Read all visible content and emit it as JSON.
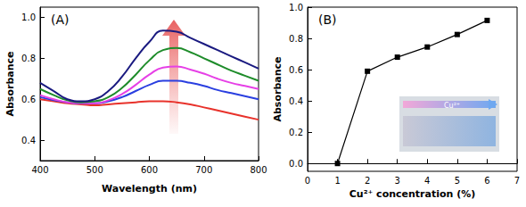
{
  "chart_data": [
    {
      "type": "line",
      "title": "(A)",
      "x_label": "Wavelength (nm)",
      "y_label": "Absorbance",
      "x": [
        400,
        425,
        450,
        475,
        500,
        525,
        550,
        575,
        600,
        625,
        650,
        675,
        700,
        725,
        750,
        775,
        800
      ],
      "series": [
        {
          "color": "#e8322b",
          "values": [
            0.6,
            0.59,
            0.58,
            0.575,
            0.57,
            0.575,
            0.58,
            0.585,
            0.59,
            0.59,
            0.585,
            0.575,
            0.56,
            0.545,
            0.53,
            0.515,
            0.5
          ]
        },
        {
          "color": "#2a3fe0",
          "values": [
            0.61,
            0.595,
            0.585,
            0.58,
            0.58,
            0.59,
            0.61,
            0.64,
            0.67,
            0.69,
            0.69,
            0.68,
            0.665,
            0.645,
            0.63,
            0.615,
            0.6
          ]
        },
        {
          "color": "#e640e6",
          "values": [
            0.62,
            0.6,
            0.585,
            0.58,
            0.58,
            0.595,
            0.625,
            0.67,
            0.72,
            0.755,
            0.76,
            0.745,
            0.725,
            0.7,
            0.68,
            0.665,
            0.65
          ]
        },
        {
          "color": "#1e8c2a",
          "values": [
            0.65,
            0.62,
            0.595,
            0.585,
            0.59,
            0.61,
            0.655,
            0.72,
            0.79,
            0.84,
            0.85,
            0.83,
            0.8,
            0.77,
            0.74,
            0.715,
            0.69
          ]
        },
        {
          "color": "#1a1a80",
          "values": [
            0.68,
            0.64,
            0.6,
            0.59,
            0.6,
            0.64,
            0.71,
            0.8,
            0.88,
            0.935,
            0.93,
            0.9,
            0.87,
            0.84,
            0.81,
            0.78,
            0.75
          ]
        }
      ],
      "xlim": [
        400,
        800
      ],
      "xticks": [
        400,
        500,
        600,
        700,
        800
      ],
      "ylim": [
        0.3,
        1.05
      ],
      "yticks": [
        0.4,
        0.6,
        0.8,
        {
          "value": 1,
          "label": "1.0"
        }
      ],
      "grid": false,
      "line_style": "solid"
    },
    {
      "type": "line",
      "title": "(B)",
      "x_label": "Cu²⁺ concentration (%)",
      "y_label": "Absorbance",
      "x": [
        1,
        2,
        3,
        4,
        5,
        6
      ],
      "series": [
        {
          "color": "#000000",
          "marker": "square",
          "values": [
            0.0,
            0.59,
            0.68,
            0.745,
            0.825,
            0.915
          ]
        }
      ],
      "xlim": [
        0,
        7
      ],
      "xticks": [
        0,
        1,
        2,
        3,
        4,
        5,
        6,
        7
      ],
      "ylim": [
        -0.05,
        1.0
      ],
      "yticks": [
        {
          "value": 0,
          "label": "0.0"
        },
        0.2,
        0.4,
        0.6,
        0.8,
        {
          "value": 1,
          "label": "1.0"
        }
      ],
      "grid": false,
      "annotations": [
        "Cu²⁺"
      ]
    }
  ]
}
